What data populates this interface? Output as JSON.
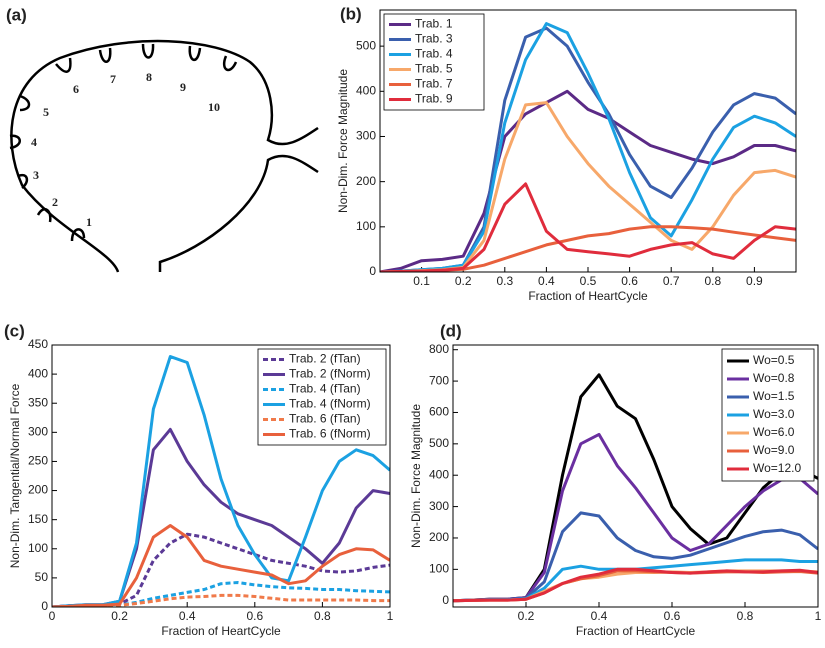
{
  "diagram": {
    "panel": "(a)",
    "labels": [
      "1",
      "2",
      "3",
      "4",
      "5",
      "6",
      "7",
      "8",
      "9",
      "10"
    ]
  },
  "chart_data": [
    {
      "type": "line",
      "panel": "(b)",
      "xlabel": "Fraction of HeartCycle",
      "ylabel": "Non-Dim. Force Magnitude",
      "xlim": [
        0,
        1
      ],
      "ylim": [
        0,
        580
      ],
      "xticks": [
        0.1,
        0.2,
        0.3,
        0.4,
        0.5,
        0.6,
        0.7,
        0.8,
        0.9
      ],
      "yticks": [
        0,
        100,
        200,
        300,
        400,
        500
      ],
      "legend": "upper left",
      "x": [
        0,
        0.05,
        0.1,
        0.15,
        0.2,
        0.25,
        0.3,
        0.35,
        0.4,
        0.45,
        0.5,
        0.55,
        0.6,
        0.65,
        0.7,
        0.75,
        0.8,
        0.85,
        0.9,
        0.95,
        1
      ],
      "series": [
        {
          "name": "Trab. 1",
          "color": "#5b2a86",
          "values": [
            0,
            8,
            25,
            28,
            35,
            130,
            300,
            350,
            375,
            400,
            360,
            340,
            310,
            280,
            265,
            250,
            240,
            255,
            280,
            280,
            268
          ]
        },
        {
          "name": "Trab. 3",
          "color": "#3a5fad",
          "values": [
            0,
            2,
            5,
            8,
            15,
            100,
            380,
            520,
            540,
            500,
            420,
            350,
            260,
            190,
            165,
            230,
            310,
            370,
            395,
            385,
            350
          ]
        },
        {
          "name": "Trab. 4",
          "color": "#1ba1e2",
          "values": [
            0,
            2,
            5,
            8,
            15,
            90,
            330,
            470,
            550,
            530,
            440,
            340,
            220,
            120,
            80,
            160,
            250,
            320,
            345,
            330,
            300
          ]
        },
        {
          "name": "Trab. 5",
          "color": "#f7a86a",
          "values": [
            0,
            1,
            3,
            5,
            10,
            70,
            250,
            370,
            375,
            300,
            240,
            190,
            150,
            110,
            70,
            50,
            100,
            170,
            220,
            225,
            210
          ]
        },
        {
          "name": "Trab. 7",
          "color": "#e8603c",
          "values": [
            0,
            1,
            2,
            4,
            6,
            15,
            30,
            45,
            60,
            70,
            80,
            85,
            95,
            100,
            100,
            98,
            95,
            88,
            82,
            76,
            70
          ]
        },
        {
          "name": "Trab. 9",
          "color": "#e02c3c",
          "values": [
            0,
            1,
            2,
            4,
            8,
            50,
            150,
            195,
            90,
            50,
            45,
            40,
            35,
            50,
            60,
            65,
            40,
            30,
            70,
            100,
            95
          ]
        }
      ]
    },
    {
      "type": "line",
      "panel": "(c)",
      "xlabel": "Fraction of HeartCycle",
      "ylabel": "Non-Dim. Tangential/Normal Force",
      "xlim": [
        0,
        1
      ],
      "ylim": [
        0,
        450
      ],
      "xticks": [
        0,
        0.2,
        0.4,
        0.6,
        0.8,
        1
      ],
      "yticks": [
        0,
        50,
        100,
        150,
        200,
        250,
        300,
        350,
        400,
        450
      ],
      "legend": "upper right",
      "x": [
        0,
        0.05,
        0.1,
        0.15,
        0.2,
        0.25,
        0.3,
        0.35,
        0.4,
        0.45,
        0.5,
        0.55,
        0.6,
        0.65,
        0.7,
        0.75,
        0.8,
        0.85,
        0.9,
        0.95,
        1
      ],
      "series": [
        {
          "name": "Trab. 2 (fTan)",
          "color": "#5b3a96",
          "dashed": true,
          "values": [
            0,
            2,
            3,
            3,
            5,
            20,
            80,
            110,
            125,
            120,
            110,
            100,
            90,
            80,
            75,
            70,
            62,
            60,
            62,
            68,
            72
          ]
        },
        {
          "name": "Trab. 2 (fNorm)",
          "color": "#5b3a96",
          "values": [
            0,
            2,
            4,
            4,
            10,
            100,
            270,
            305,
            250,
            210,
            180,
            160,
            150,
            140,
            120,
            100,
            75,
            110,
            170,
            200,
            195
          ]
        },
        {
          "name": "Trab. 4 (fTan)",
          "color": "#1ba1e2",
          "dashed": true,
          "values": [
            0,
            1,
            2,
            2,
            3,
            8,
            15,
            20,
            25,
            30,
            40,
            42,
            38,
            35,
            33,
            32,
            30,
            30,
            28,
            27,
            26
          ]
        },
        {
          "name": "Trab. 4 (fNorm)",
          "color": "#1ba1e2",
          "values": [
            0,
            2,
            4,
            4,
            10,
            110,
            340,
            430,
            420,
            330,
            220,
            140,
            90,
            50,
            45,
            120,
            200,
            250,
            270,
            260,
            235
          ]
        },
        {
          "name": "Trab. 6 (fTan)",
          "color": "#f07a4a",
          "dashed": true,
          "values": [
            0,
            1,
            1,
            2,
            3,
            6,
            10,
            14,
            17,
            18,
            20,
            20,
            18,
            15,
            12,
            12,
            12,
            12,
            12,
            11,
            11
          ]
        },
        {
          "name": "Trab. 6 (fNorm)",
          "color": "#e8603c",
          "values": [
            0,
            1,
            3,
            3,
            5,
            50,
            120,
            140,
            120,
            80,
            70,
            65,
            60,
            55,
            40,
            45,
            70,
            90,
            100,
            98,
            80
          ]
        }
      ]
    },
    {
      "type": "line",
      "panel": "(d)",
      "xlabel": "Fraction of HeartCycle",
      "ylabel": "Non-Dim. Force Magnitude",
      "xlim": [
        0,
        1
      ],
      "ylim": [
        -20,
        815
      ],
      "xticks": [
        0.2,
        0.4,
        0.6,
        0.8,
        1
      ],
      "yticks": [
        0,
        100,
        200,
        300,
        400,
        500,
        600,
        700,
        800
      ],
      "legend": "upper right",
      "x": [
        0,
        0.05,
        0.1,
        0.15,
        0.2,
        0.25,
        0.3,
        0.35,
        0.4,
        0.45,
        0.5,
        0.55,
        0.6,
        0.65,
        0.7,
        0.75,
        0.8,
        0.85,
        0.9,
        0.95,
        1
      ],
      "series": [
        {
          "name": "Wo=0.5",
          "color": "#000000",
          "values": [
            0,
            2,
            5,
            5,
            10,
            100,
            400,
            650,
            720,
            620,
            580,
            450,
            300,
            230,
            180,
            200,
            280,
            360,
            410,
            420,
            390
          ]
        },
        {
          "name": "Wo=0.8",
          "color": "#6a2fa0",
          "values": [
            0,
            2,
            5,
            5,
            10,
            90,
            350,
            500,
            530,
            430,
            360,
            280,
            200,
            160,
            180,
            240,
            300,
            350,
            385,
            390,
            340
          ]
        },
        {
          "name": "Wo=1.5",
          "color": "#3a5fad",
          "values": [
            0,
            2,
            4,
            4,
            8,
            60,
            220,
            280,
            270,
            200,
            160,
            140,
            135,
            145,
            165,
            185,
            205,
            220,
            225,
            210,
            165
          ]
        },
        {
          "name": "Wo=3.0",
          "color": "#1ba1e2",
          "values": [
            0,
            1,
            3,
            3,
            6,
            40,
            100,
            110,
            100,
            100,
            100,
            105,
            110,
            115,
            120,
            125,
            130,
            130,
            130,
            125,
            125
          ]
        },
        {
          "name": "Wo=6.0",
          "color": "#f7a86a",
          "values": [
            0,
            1,
            2,
            2,
            5,
            30,
            55,
            70,
            75,
            85,
            90,
            90,
            92,
            90,
            92,
            95,
            95,
            95,
            95,
            95,
            92
          ]
        },
        {
          "name": "Wo=9.0",
          "color": "#e8603c",
          "values": [
            0,
            1,
            2,
            2,
            5,
            25,
            55,
            70,
            80,
            95,
            95,
            92,
            90,
            88,
            90,
            92,
            92,
            90,
            92,
            93,
            88
          ]
        },
        {
          "name": "Wo=12.0",
          "color": "#e02c3c",
          "values": [
            0,
            1,
            2,
            2,
            5,
            25,
            55,
            75,
            85,
            100,
            100,
            95,
            90,
            88,
            92,
            95,
            92,
            92,
            95,
            97,
            90
          ]
        }
      ]
    }
  ]
}
